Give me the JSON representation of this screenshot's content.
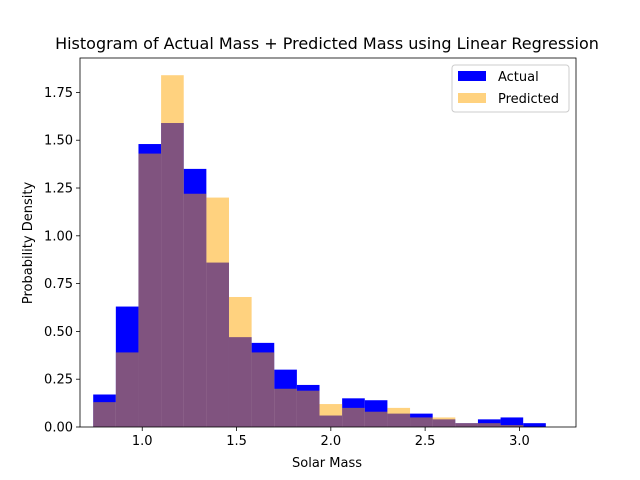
{
  "chart_data": {
    "type": "bar",
    "title": "Histogram of Actual Mass + Predicted Mass using Linear Regression",
    "xlabel": "Solar Mass",
    "ylabel": "Probability Density",
    "xlim": [
      0.67,
      3.3
    ],
    "ylim": [
      0,
      1.93
    ],
    "xticks": [
      "1.0",
      "1.5",
      "2.0",
      "2.5",
      "3.0"
    ],
    "yticks": [
      "0.00",
      "0.25",
      "0.50",
      "0.75",
      "1.00",
      "1.25",
      "1.50",
      "1.75"
    ],
    "legend_position": "top-right",
    "series": [
      {
        "name": "Actual",
        "color": "#0000ff",
        "bin_edges": [
          0.74,
          0.86,
          0.98,
          1.1,
          1.22,
          1.34,
          1.46,
          1.58,
          1.7,
          1.82,
          1.94,
          2.06,
          2.18,
          2.3,
          2.42,
          2.54,
          2.66,
          2.78,
          2.9,
          3.02,
          3.14
        ],
        "values": [
          0.17,
          0.63,
          1.48,
          1.59,
          1.35,
          0.86,
          0.47,
          0.44,
          0.3,
          0.22,
          0.06,
          0.15,
          0.14,
          0.07,
          0.07,
          0.04,
          0.02,
          0.04,
          0.05,
          0.02
        ]
      },
      {
        "name": "Predicted",
        "color": "#ffa500",
        "bin_edges": [
          0.74,
          0.86,
          0.98,
          1.1,
          1.22,
          1.34,
          1.46,
          1.58,
          1.7,
          1.82,
          1.94,
          2.06,
          2.18,
          2.3,
          2.42,
          2.54,
          2.66,
          2.78,
          2.9,
          3.02,
          3.14
        ],
        "values": [
          0.13,
          0.39,
          1.43,
          1.84,
          1.22,
          1.2,
          0.68,
          0.39,
          0.2,
          0.19,
          0.12,
          0.1,
          0.08,
          0.1,
          0.05,
          0.05,
          0.02,
          0.02,
          0.01,
          0.0
        ]
      }
    ]
  }
}
